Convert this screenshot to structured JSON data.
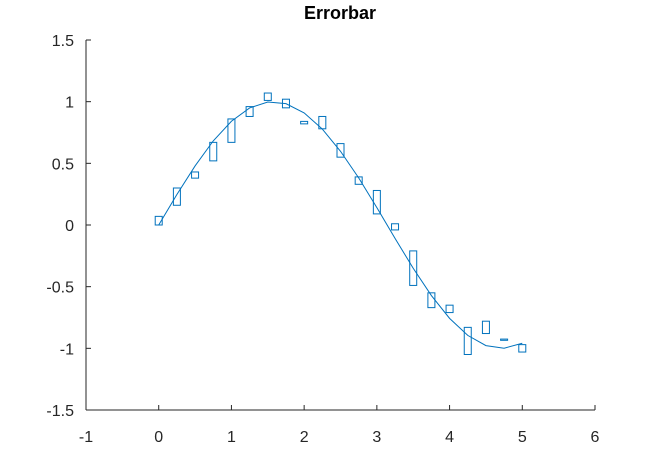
{
  "chart_data": {
    "type": "line",
    "title": "Errorbar",
    "xlabel": "",
    "ylabel": "",
    "xlim": [
      -1,
      6
    ],
    "ylim": [
      -1.5,
      1.5
    ],
    "x_ticks": [
      -1,
      0,
      1,
      2,
      3,
      4,
      5,
      6
    ],
    "y_ticks": [
      -1.5,
      -1,
      -0.5,
      0,
      0.5,
      1,
      1.5
    ],
    "x_tick_labels": [
      "-1",
      "0",
      "1",
      "2",
      "3",
      "4",
      "5",
      "6"
    ],
    "y_tick_labels": [
      "-1.5",
      "-1",
      "-0.5",
      "0",
      "0.5",
      "1",
      "1.5"
    ],
    "grid": false,
    "color": "#0072bd",
    "series": [
      {
        "x": [
          0,
          0.25,
          0.5,
          0.75,
          1,
          1.25,
          1.5,
          1.75,
          2,
          2.25,
          2.5,
          2.75,
          3,
          3.25,
          3.5,
          3.75,
          4,
          4.25,
          4.5,
          4.75,
          5
        ],
        "y": [
          0,
          0.247,
          0.479,
          0.682,
          0.841,
          0.949,
          0.997,
          0.984,
          0.909,
          0.778,
          0.598,
          0.382,
          0.141,
          -0.108,
          -0.351,
          -0.572,
          -0.757,
          -0.895,
          -0.978,
          -0.999,
          -0.959
        ]
      }
    ],
    "error_boxes": [
      {
        "x": 0,
        "low": 0.0,
        "high": 0.07
      },
      {
        "x": 0.25,
        "low": 0.16,
        "high": 0.3
      },
      {
        "x": 0.5,
        "low": 0.38,
        "high": 0.43
      },
      {
        "x": 0.75,
        "low": 0.52,
        "high": 0.67
      },
      {
        "x": 1,
        "low": 0.67,
        "high": 0.86
      },
      {
        "x": 1.25,
        "low": 0.88,
        "high": 0.96
      },
      {
        "x": 1.5,
        "low": 1.01,
        "high": 1.07
      },
      {
        "x": 1.75,
        "low": 0.95,
        "high": 1.02
      },
      {
        "x": 2,
        "low": 0.82,
        "high": 0.84
      },
      {
        "x": 2.25,
        "low": 0.78,
        "high": 0.88
      },
      {
        "x": 2.5,
        "low": 0.55,
        "high": 0.66
      },
      {
        "x": 2.75,
        "low": 0.33,
        "high": 0.39
      },
      {
        "x": 3,
        "low": 0.09,
        "high": 0.28
      },
      {
        "x": 3.25,
        "low": -0.04,
        "high": 0.01
      },
      {
        "x": 3.5,
        "low": -0.49,
        "high": -0.21
      },
      {
        "x": 3.75,
        "low": -0.67,
        "high": -0.55
      },
      {
        "x": 4,
        "low": -0.71,
        "high": -0.65
      },
      {
        "x": 4.25,
        "low": -1.05,
        "high": -0.83
      },
      {
        "x": 4.5,
        "low": -0.88,
        "high": -0.78
      },
      {
        "x": 4.75,
        "low": -0.935,
        "high": -0.925
      },
      {
        "x": 5,
        "low": -1.03,
        "high": -0.97
      }
    ]
  }
}
